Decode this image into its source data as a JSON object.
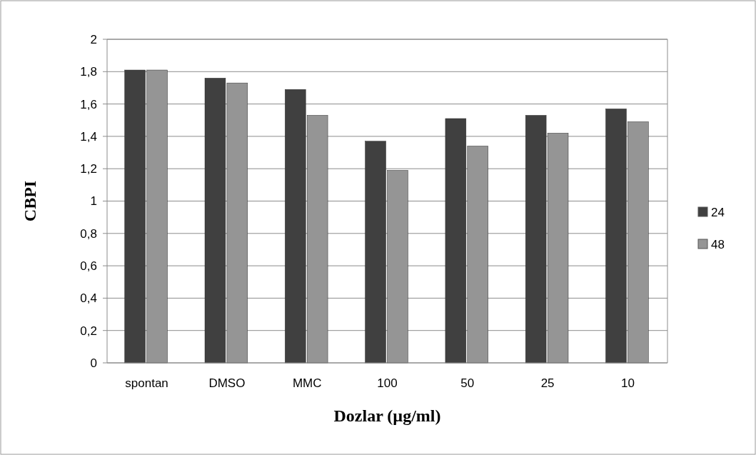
{
  "chart_data": {
    "type": "bar",
    "xlabel": "Dozlar (µg/ml)",
    "ylabel": "CBPI",
    "categories": [
      "spontan",
      "DMSO",
      "MMC",
      "100",
      "50",
      "25",
      "10"
    ],
    "series": [
      {
        "name": "24",
        "color": "#404040",
        "values": [
          1.81,
          1.76,
          1.69,
          1.37,
          1.51,
          1.53,
          1.57
        ]
      },
      {
        "name": "48",
        "color": "#959595",
        "values": [
          1.81,
          1.73,
          1.53,
          1.19,
          1.34,
          1.42,
          1.49
        ]
      }
    ],
    "ylim": [
      0,
      2
    ],
    "yticks": [
      0,
      {
        "value": 0.2,
        "label": "0,2"
      },
      {
        "value": 0.4,
        "label": "0,4"
      },
      {
        "value": 0.6,
        "label": "0,6"
      },
      {
        "value": 0.8,
        "label": "0,8"
      },
      1,
      {
        "value": 1.2,
        "label": "1,2"
      },
      {
        "value": 1.4,
        "label": "1,4"
      },
      {
        "value": 1.6,
        "label": "1,6"
      },
      {
        "value": 1.8,
        "label": "1,8"
      },
      2
    ],
    "grid": "y",
    "legend": "right"
  }
}
